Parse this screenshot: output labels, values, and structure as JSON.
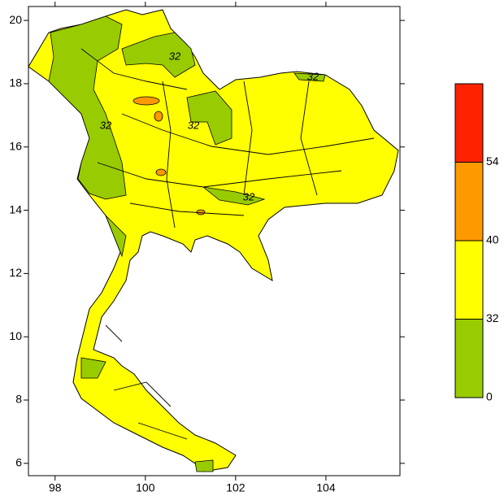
{
  "map": {
    "xlim": [
      97.41,
      105.64
    ],
    "ylim": [
      5.61,
      20.44
    ],
    "xticks": [
      98,
      100,
      102,
      104
    ],
    "yticks": [
      6,
      8,
      10,
      12,
      14,
      16,
      18,
      20
    ],
    "contour_labels": [
      "32",
      "32",
      "32",
      "32",
      "32"
    ],
    "colorbar": {
      "levels": [
        0,
        32,
        40,
        54
      ],
      "colors": [
        "#99cc00",
        "#ffff00",
        "#ff9900",
        "#ff2200"
      ]
    }
  }
}
